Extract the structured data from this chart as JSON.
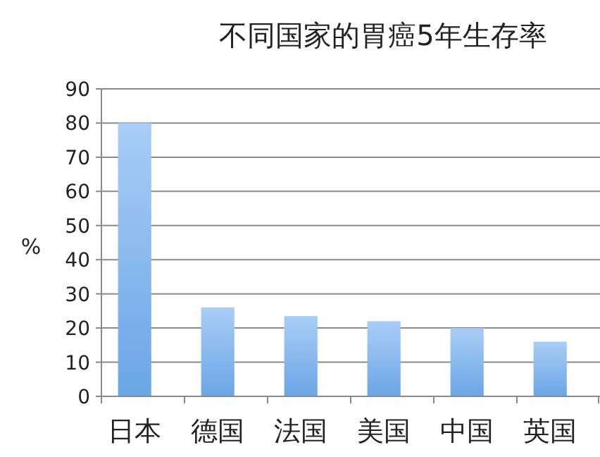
{
  "chart_data": {
    "type": "bar",
    "title": "不同国家的胃癌5年生存率",
    "ylabel": "%",
    "categories": [
      "日本",
      "德国",
      "法国",
      "美国",
      "中国",
      "英国"
    ],
    "values": [
      80,
      26,
      23.5,
      22,
      20,
      16
    ],
    "color": "#6aa6e6",
    "ylim": [
      0,
      90
    ],
    "yticks": [
      0,
      10,
      20,
      30,
      40,
      50,
      60,
      70,
      80,
      90
    ],
    "grid": "y"
  }
}
